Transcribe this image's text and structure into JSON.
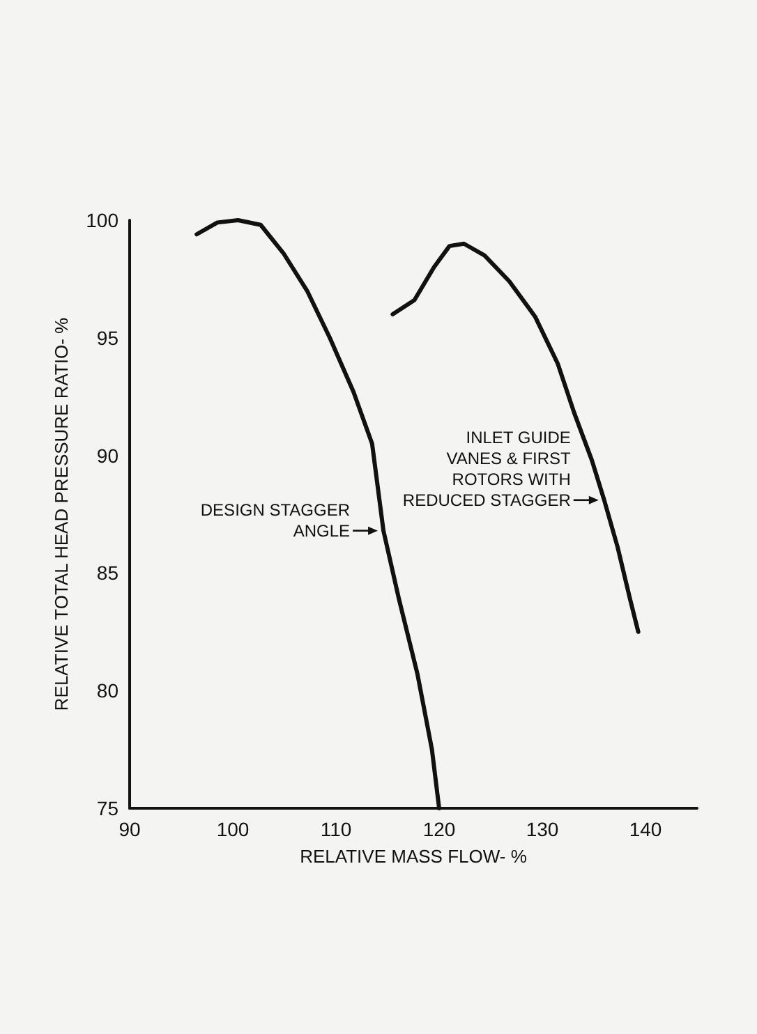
{
  "chart_data": {
    "type": "line",
    "xlabel": "RELATIVE MASS FLOW- %",
    "ylabel": "RELATIVE TOTAL HEAD PRESSURE RATIO- %",
    "series": [
      {
        "color": "#111111",
        "x": [
          96.5,
          98.5,
          100.5,
          102.7,
          104.9,
          107.2,
          109.4,
          111.7,
          113.5,
          114.6,
          116.1,
          117.9,
          119.3,
          120
        ],
        "values": [
          99.4,
          99.9,
          100,
          99.8,
          98.6,
          97.0,
          95.0,
          92.7,
          90.5,
          86.8,
          83.9,
          80.7,
          77.5,
          75
        ]
      },
      {
        "color": "#111111",
        "x": [
          115.5,
          117.6,
          119.5,
          121,
          122.4,
          124.4,
          126.8,
          129.3,
          131.5,
          133.1,
          134.8,
          136,
          137.3,
          138.5,
          139.3
        ],
        "values": [
          96.0,
          96.6,
          98.0,
          98.9,
          99.0,
          98.5,
          97.4,
          95.9,
          93.9,
          91.8,
          89.8,
          88.1,
          86.1,
          83.9,
          82.5
        ]
      }
    ],
    "xlim": [
      90,
      145
    ],
    "xticks": [
      90,
      100,
      110,
      120,
      130,
      140
    ],
    "ylim": [
      75,
      100
    ],
    "yticks": [
      75,
      80,
      85,
      90,
      95,
      100
    ],
    "marker": "none",
    "line_style": "solid",
    "annotations": [
      {
        "text": "DESIGN STAGGER\nANGLE",
        "x": 114.6,
        "y": 86.8
      },
      {
        "text": "INLET GUIDE\nVANES & FIRST\nROTORS WITH\nREDUCED STAGGER",
        "x": 136,
        "y": 88.1
      }
    ]
  }
}
